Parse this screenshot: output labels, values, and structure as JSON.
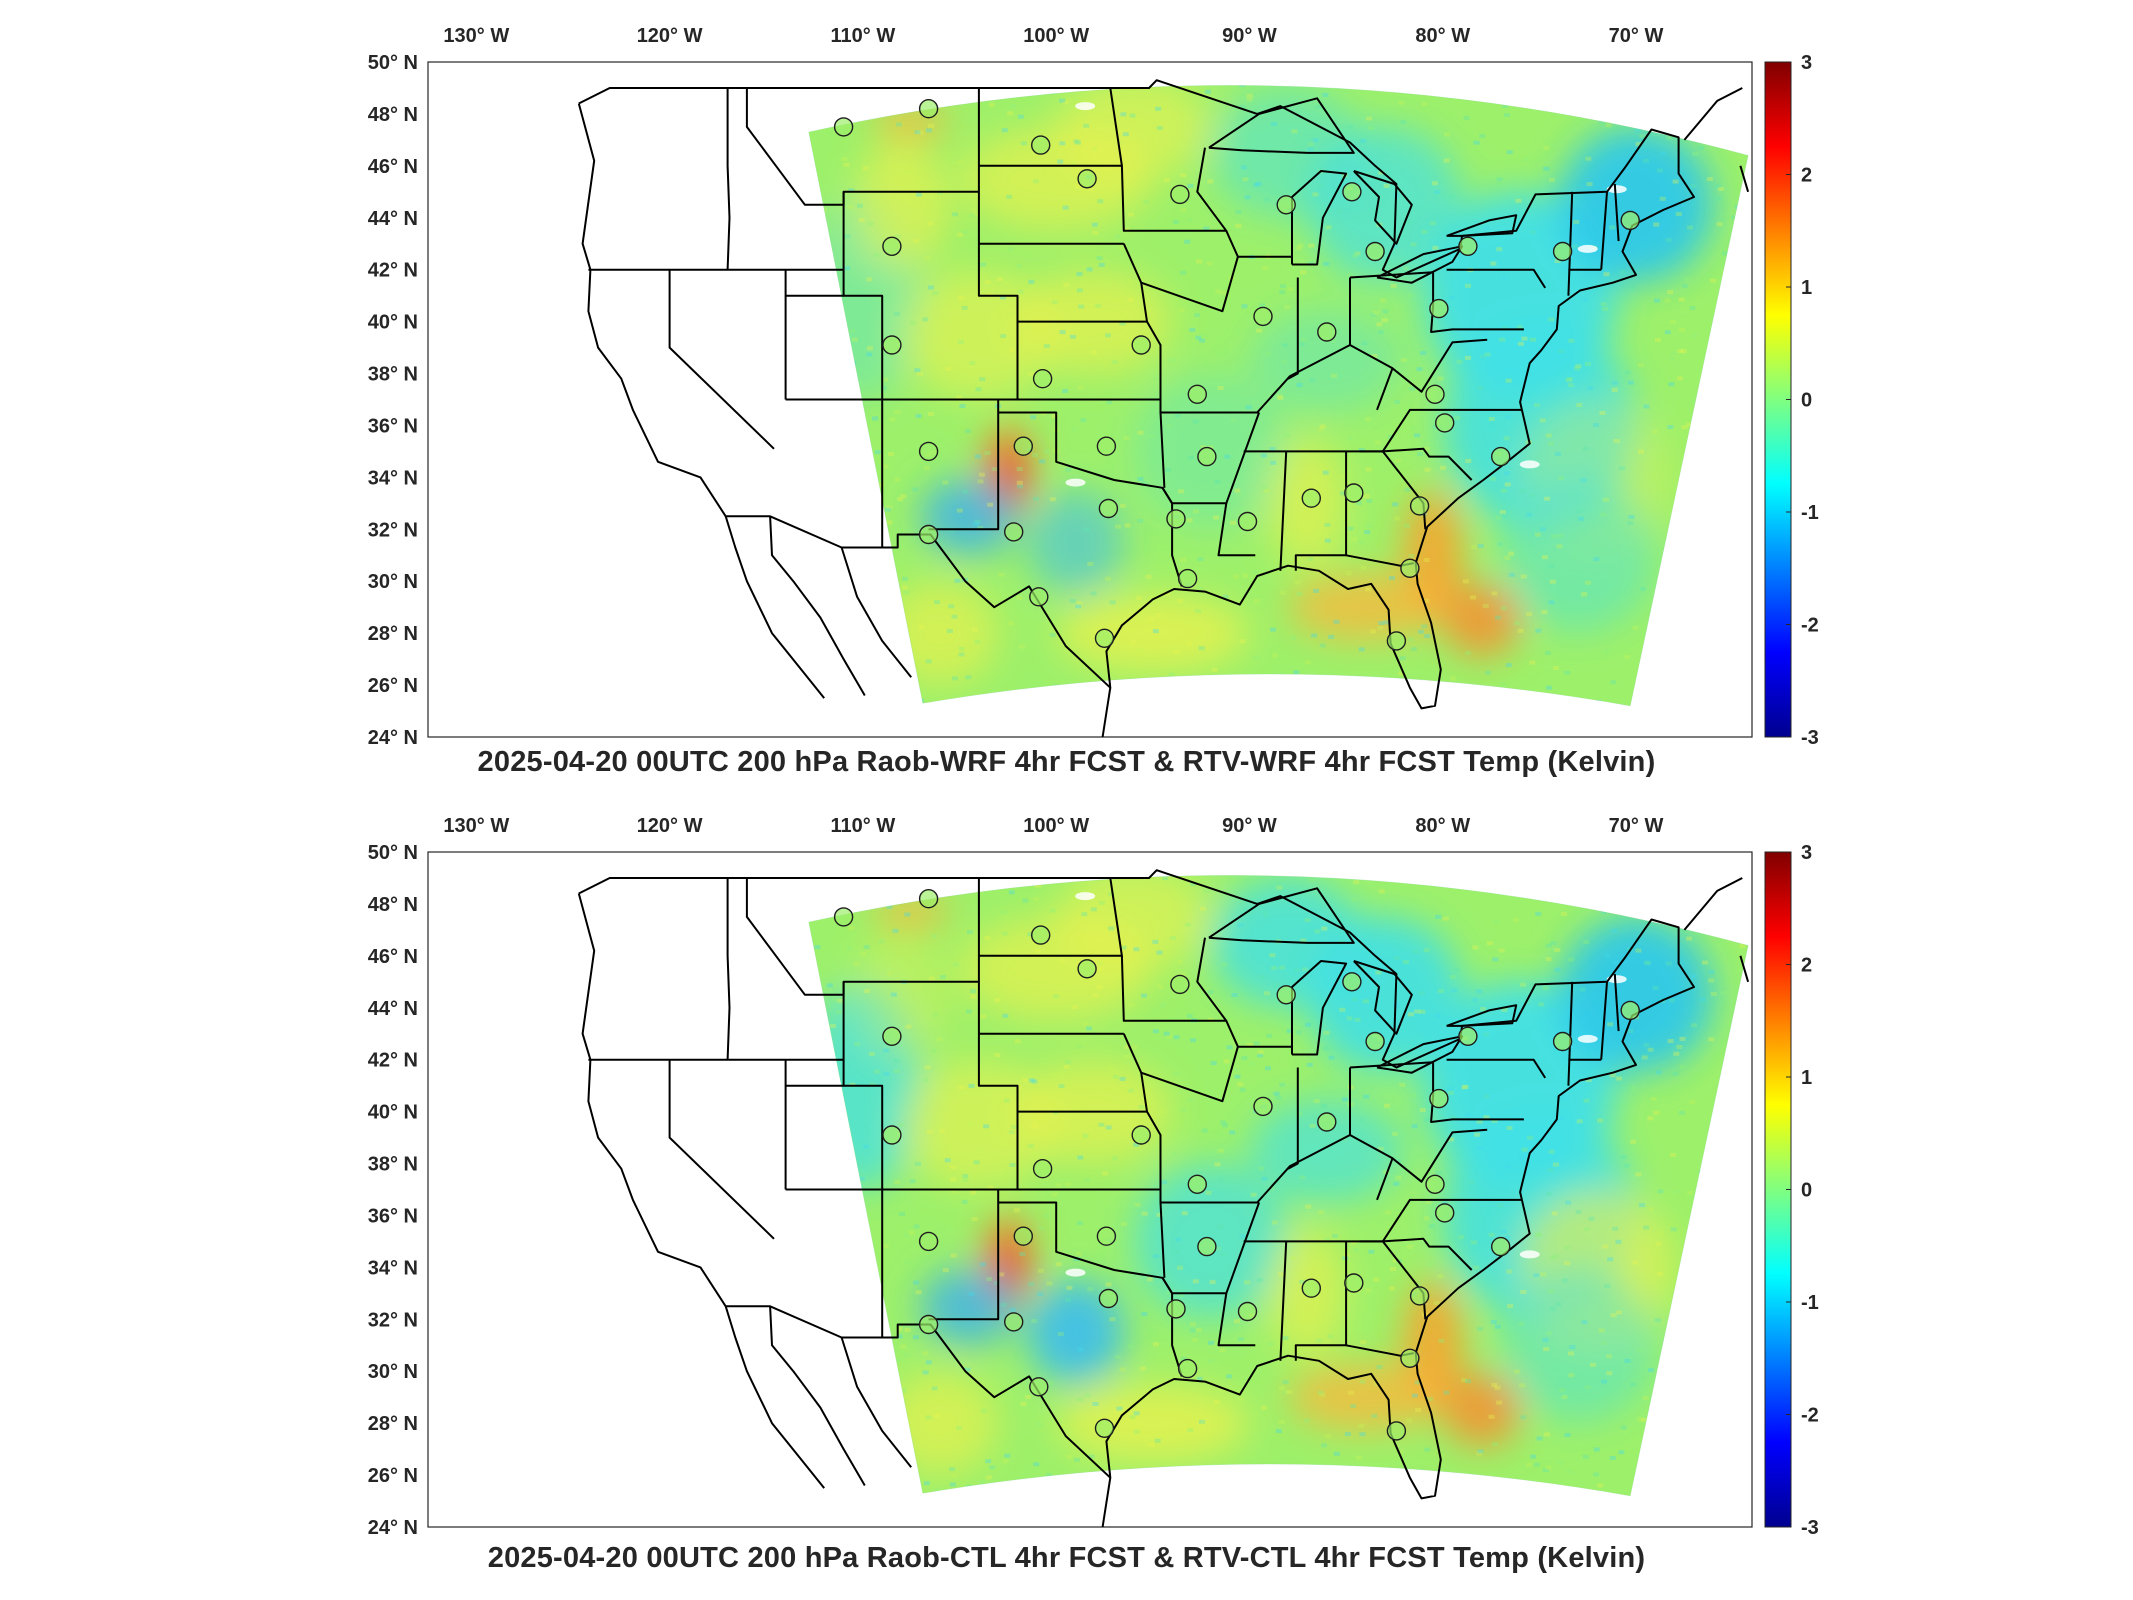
{
  "panels": [
    {
      "id": "top",
      "title": "2025-04-20 00UTC 200 hPa Raob-WRF 4hr FCST & RTV-WRF 4hr FCST Temp (Kelvin)",
      "variant": "wrf"
    },
    {
      "id": "bottom",
      "title": "2025-04-20 00UTC 200 hPa Raob-CTL 4hr FCST & RTV-CTL 4hr FCST Temp (Kelvin)",
      "variant": "ctl"
    }
  ],
  "lon_ticks": [
    "130° W",
    "120° W",
    "110° W",
    "100° W",
    "90° W",
    "80° W",
    "70° W"
  ],
  "lat_ticks": [
    "50° N",
    "48° N",
    "46° N",
    "44° N",
    "42° N",
    "40° N",
    "38° N",
    "36° N",
    "34° N",
    "32° N",
    "30° N",
    "28° N",
    "26° N",
    "24° N"
  ],
  "colorbar": {
    "ticks": [
      "3",
      "2",
      "1",
      "0",
      "-1",
      "-2",
      "-3"
    ],
    "range": [
      -3,
      3
    ],
    "colormap": "jet",
    "stops": [
      "#00008f",
      "#0000ff",
      "#0080ff",
      "#00ffff",
      "#80ff80",
      "#ffff00",
      "#ff8000",
      "#ff0000",
      "#800000"
    ]
  },
  "colors": {
    "field_base": "#9df06a",
    "field_cool": "#41e0e6",
    "field_warm": "#f4f24a",
    "border": "#000000",
    "raob_marker_stroke": "#1e1e1e"
  },
  "stations": [
    {
      "lon": -111.0,
      "lat": 47.5
    },
    {
      "lon": -106.6,
      "lat": 48.2
    },
    {
      "lon": -100.8,
      "lat": 46.8
    },
    {
      "lon": -98.4,
      "lat": 45.5
    },
    {
      "lon": -93.6,
      "lat": 44.9
    },
    {
      "lon": -88.1,
      "lat": 44.5
    },
    {
      "lon": -84.7,
      "lat": 45.0
    },
    {
      "lon": -83.5,
      "lat": 42.7
    },
    {
      "lon": -78.7,
      "lat": 42.9
    },
    {
      "lon": -73.8,
      "lat": 42.7
    },
    {
      "lon": -70.3,
      "lat": 43.9
    },
    {
      "lon": -108.5,
      "lat": 42.9
    },
    {
      "lon": -108.5,
      "lat": 39.1
    },
    {
      "lon": -100.7,
      "lat": 37.8
    },
    {
      "lon": -95.6,
      "lat": 39.1
    },
    {
      "lon": -89.3,
      "lat": 40.2
    },
    {
      "lon": -86.0,
      "lat": 39.6
    },
    {
      "lon": -80.2,
      "lat": 40.5
    },
    {
      "lon": -80.4,
      "lat": 37.2
    },
    {
      "lon": -79.9,
      "lat": 36.1
    },
    {
      "lon": -92.7,
      "lat": 37.2
    },
    {
      "lon": -106.6,
      "lat": 35.0
    },
    {
      "lon": -101.7,
      "lat": 35.2
    },
    {
      "lon": -97.4,
      "lat": 35.2
    },
    {
      "lon": -92.2,
      "lat": 34.8
    },
    {
      "lon": -106.6,
      "lat": 31.8
    },
    {
      "lon": -102.2,
      "lat": 31.9
    },
    {
      "lon": -97.3,
      "lat": 32.8
    },
    {
      "lon": -93.8,
      "lat": 32.4
    },
    {
      "lon": -90.1,
      "lat": 32.3
    },
    {
      "lon": -86.8,
      "lat": 33.2
    },
    {
      "lon": -84.6,
      "lat": 33.4
    },
    {
      "lon": -81.2,
      "lat": 32.9
    },
    {
      "lon": -100.9,
      "lat": 29.4
    },
    {
      "lon": -97.5,
      "lat": 27.8
    },
    {
      "lon": -93.2,
      "lat": 30.1
    },
    {
      "lon": -81.7,
      "lat": 30.5
    },
    {
      "lon": -82.4,
      "lat": 27.7
    },
    {
      "lon": -77.0,
      "lat": 34.8
    }
  ]
}
